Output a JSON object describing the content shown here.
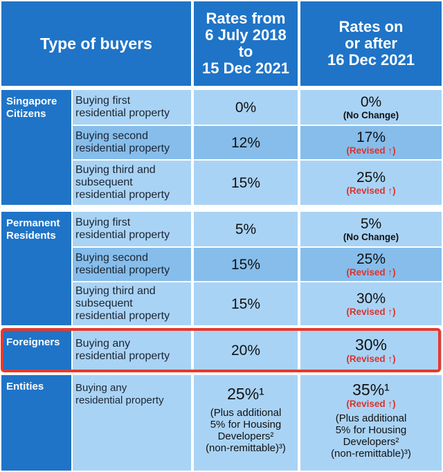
{
  "header": {
    "type_of_buyers": "Type of buyers",
    "col_old": [
      "Rates from",
      "6 July 2018",
      "to",
      "15 Dec 2021"
    ],
    "col_new": [
      "Rates on",
      "or after",
      "16 Dec 2021"
    ]
  },
  "groups": {
    "singapore_citizens": [
      "Singapore",
      "Citizens"
    ],
    "permanent_residents": [
      "Permanent",
      "Residents"
    ],
    "foreigners": "Foreigners",
    "entities": "Entities"
  },
  "rows": {
    "sc_first": {
      "desc": [
        "Buying first",
        "residential property"
      ],
      "old": "0%",
      "new": "0%",
      "note": "(No Change)"
    },
    "sc_second": {
      "desc": [
        "Buying second",
        "residential property"
      ],
      "old": "12%",
      "new": "17%",
      "note": "(Revised ↑)"
    },
    "sc_third": {
      "desc": [
        "Buying third and",
        "subsequent",
        "residential property"
      ],
      "old": "15%",
      "new": "25%",
      "note": "(Revised ↑)"
    },
    "pr_first": {
      "desc": [
        "Buying first",
        "residential property"
      ],
      "old": "5%",
      "new": "5%",
      "note": "(No Change)"
    },
    "pr_second": {
      "desc": [
        "Buying second",
        "residential property"
      ],
      "old": "15%",
      "new": "25%",
      "note": "(Revised ↑)"
    },
    "pr_third": {
      "desc": [
        "Buying third and",
        "subsequent",
        "residential property"
      ],
      "old": "15%",
      "new": "30%",
      "note": "(Revised ↑)"
    },
    "foreigners": {
      "desc": [
        "Buying any",
        "residential property"
      ],
      "old": "20%",
      "new": "30%",
      "note": "(Revised ↑)"
    },
    "entities": {
      "desc": [
        "Buying any",
        "residential property"
      ],
      "old": "25%¹",
      "new": "35%¹",
      "note": "(Revised ↑)",
      "old_extra": [
        "(Plus additional",
        "5% for Housing",
        "Developers²",
        "(non-remittable)³)"
      ],
      "new_extra": [
        "(Plus additional",
        "5% for Housing",
        "Developers²",
        "(non-remittable)³)"
      ]
    }
  },
  "colors": {
    "header_blue": "#1f74c7",
    "cell_light": "#a9d3f5",
    "cell_dark": "#86bdeb",
    "revised_red": "#d8342e",
    "highlight_red": "#e8392b"
  }
}
